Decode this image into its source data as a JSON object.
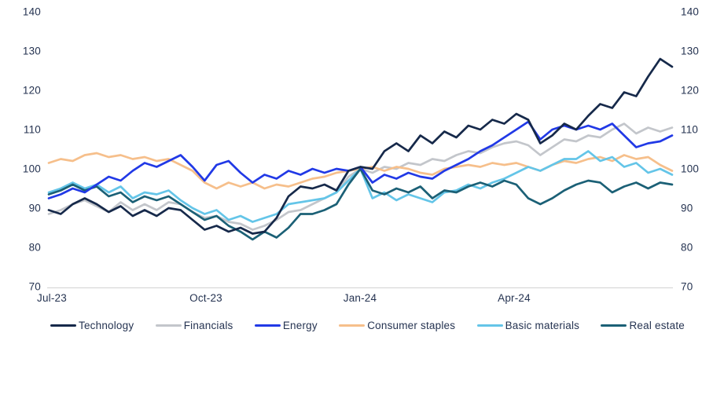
{
  "chart_data": {
    "type": "line",
    "title": "",
    "x_tick_labels": [
      "Jul-23",
      "Oct-23",
      "Jan-24",
      "Apr-24"
    ],
    "y_ticks": [
      140,
      130,
      120,
      110,
      100,
      90,
      80,
      70
    ],
    "ylim": [
      70,
      140
    ],
    "grid": false,
    "y_axis_sides": [
      "left",
      "right"
    ],
    "legend_position": "bottom",
    "axis_line_color": "#d9d9d9",
    "label_text_color": "#253351",
    "points_per_series": 53,
    "x_range_note": "weekly points from Jul-23 through Jun-24, index base 100 at Jan-24",
    "draw_order": [
      1,
      3,
      4,
      5,
      2,
      0
    ],
    "series": [
      {
        "name": "Technology",
        "color": "#16294a",
        "values": [
          89.5,
          88.5,
          91,
          92.5,
          91,
          89,
          90.5,
          88,
          89.5,
          88,
          90,
          89.5,
          87,
          84.5,
          85.5,
          84,
          85,
          83.5,
          84,
          87.5,
          93,
          95.5,
          95,
          96,
          94.5,
          99.5,
          100.5,
          100,
          104.5,
          106.5,
          104.5,
          108.5,
          106.5,
          109.5,
          108,
          111,
          110,
          112.5,
          111.5,
          114,
          112.5,
          106.5,
          108.5,
          111.5,
          110,
          113.5,
          116.5,
          115.5,
          119.5,
          118.5,
          123.5,
          128,
          126
        ]
      },
      {
        "name": "Financials",
        "color": "#c3c6cb",
        "values": [
          88.5,
          89.5,
          91,
          92,
          90.5,
          89,
          91.5,
          89.5,
          91,
          89.5,
          91.5,
          91,
          89,
          87.5,
          88,
          86.5,
          86,
          84.5,
          85.5,
          87,
          89,
          89.5,
          91,
          92.5,
          94,
          98,
          100,
          99,
          100.5,
          100,
          101.5,
          101,
          102.5,
          102,
          103.5,
          104.5,
          104,
          105.5,
          106.5,
          107,
          106,
          103.5,
          105.5,
          107.5,
          107,
          108.5,
          108,
          110,
          111.5,
          109,
          110.5,
          109.5,
          110.5
        ]
      },
      {
        "name": "Energy",
        "color": "#2139e6",
        "values": [
          92.5,
          93.5,
          95,
          94,
          96,
          98,
          97,
          99.5,
          101.5,
          100.5,
          102,
          103.5,
          100.5,
          97,
          101,
          102,
          99,
          96.5,
          98.5,
          97.5,
          99.5,
          98.5,
          100,
          99,
          100,
          99.5,
          100.5,
          96.5,
          98.5,
          97.5,
          99,
          98,
          97.5,
          99.5,
          101,
          102.5,
          104.5,
          106,
          108,
          110,
          112,
          107.5,
          110,
          111,
          110,
          111,
          110,
          111.5,
          108.5,
          105.5,
          106.5,
          107,
          108.5
        ]
      },
      {
        "name": "Consumer staples",
        "color": "#f6bf8b",
        "values": [
          101.5,
          102.5,
          102,
          103.5,
          104,
          103,
          103.5,
          102.5,
          103,
          102,
          102.5,
          101,
          99.5,
          96.5,
          95,
          96.5,
          95.5,
          96.5,
          95,
          96,
          95.5,
          96.5,
          97.5,
          98,
          99,
          99.5,
          100,
          100.5,
          99.5,
          100.5,
          100,
          99,
          98.5,
          100,
          100.5,
          101,
          100.5,
          101.5,
          101,
          101.5,
          100.5,
          99.5,
          101,
          102,
          101.5,
          102.5,
          103,
          102,
          103.5,
          102.5,
          103,
          101,
          99.5
        ]
      },
      {
        "name": "Basic materials",
        "color": "#64c5e8",
        "values": [
          94,
          95,
          96.5,
          95,
          96,
          94,
          95.5,
          92.5,
          94,
          93.5,
          94.5,
          92,
          90,
          88.5,
          89.5,
          87,
          88,
          86.5,
          87.5,
          88.5,
          91,
          91.5,
          92,
          92.5,
          94,
          97,
          100,
          92.5,
          94,
          92,
          93.5,
          92.5,
          91.5,
          94,
          94.5,
          96,
          95,
          96.5,
          97.5,
          99,
          100.5,
          99.5,
          101,
          102.5,
          102.5,
          104.5,
          102,
          103,
          100.5,
          101.5,
          99,
          100,
          98.5
        ]
      },
      {
        "name": "Real estate",
        "color": "#1b6076",
        "values": [
          93.5,
          94.5,
          96,
          94.5,
          95.5,
          93,
          94,
          91.5,
          93,
          92,
          93,
          91,
          89,
          87,
          88,
          85.5,
          84,
          82,
          84,
          82.5,
          85,
          88.5,
          88.5,
          89.5,
          91,
          96,
          100,
          94.5,
          93.5,
          95,
          94,
          95.5,
          92.5,
          94.5,
          94,
          95.5,
          96.5,
          95.5,
          97,
          96,
          92.5,
          91,
          92.5,
          94.5,
          96,
          97,
          96.5,
          94,
          95.5,
          96.5,
          95,
          96.5,
          96
        ]
      }
    ]
  }
}
